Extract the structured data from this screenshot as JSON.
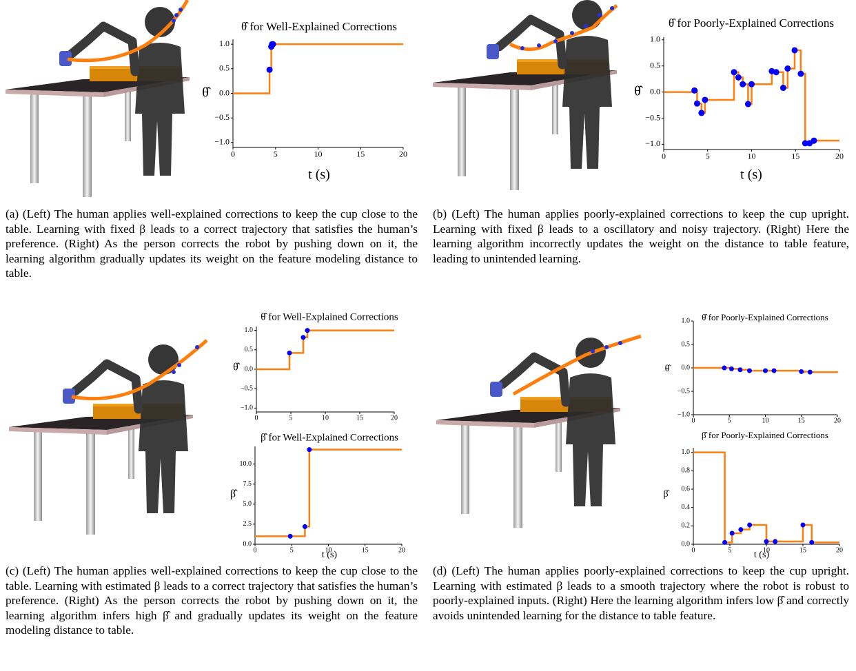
{
  "chart_data": [
    {
      "type": "step",
      "title": "θ̂ for Well-Explained Corrections",
      "x_label": "t (s)",
      "y_label": "θ̂",
      "x": [
        0,
        4.3,
        4.5,
        4.6,
        4.7,
        20
      ],
      "values": [
        0,
        0.48,
        0.95,
        1.0,
        1.0,
        1.0
      ],
      "marker_x": [
        4.3,
        4.5,
        4.6,
        4.7
      ],
      "marker_values": [
        0.48,
        0.95,
        1.0,
        1.0
      ],
      "color": "#ff7f0e",
      "marker_color": "#0000ff",
      "xlim": [
        0,
        20
      ],
      "ylim": [
        -1.1,
        1.1
      ],
      "xticks": [
        0,
        5,
        10,
        15,
        20
      ],
      "yticks": [
        {
          "value": -1.0,
          "label": "−1.0"
        },
        {
          "value": -0.5,
          "label": "−0.5"
        },
        {
          "value": 0,
          "label": "0.0"
        },
        0.5,
        {
          "value": 1.0,
          "label": "1.0"
        }
      ]
    },
    {
      "type": "step",
      "title": "θ̂ for Poorly-Explained Corrections",
      "x_label": "t (s)",
      "y_label": "θ̂",
      "x": [
        0,
        3.5,
        3.8,
        4.3,
        4.7,
        8.0,
        8.5,
        9.0,
        9.6,
        10.0,
        12.3,
        12.8,
        13.6,
        14.1,
        14.9,
        15.6,
        16.1,
        16.6,
        17.1,
        20
      ],
      "values": [
        0,
        0.03,
        -0.22,
        -0.4,
        -0.15,
        0.38,
        0.28,
        0.15,
        -0.23,
        0.15,
        0.4,
        0.38,
        0.08,
        0.45,
        0.8,
        0.35,
        -0.98,
        -0.98,
        -0.93,
        -0.93
      ],
      "marker_x": [
        3.5,
        3.8,
        4.3,
        4.7,
        8.0,
        8.5,
        9.0,
        9.6,
        10.0,
        12.3,
        12.8,
        13.6,
        14.1,
        14.9,
        15.6,
        16.1,
        16.6,
        17.1
      ],
      "marker_values": [
        0.03,
        -0.22,
        -0.4,
        -0.15,
        0.38,
        0.28,
        0.15,
        -0.23,
        0.15,
        0.4,
        0.38,
        0.08,
        0.45,
        0.8,
        0.35,
        -0.98,
        -0.98,
        -0.93
      ],
      "color": "#ff7f0e",
      "marker_color": "#0000ff",
      "xlim": [
        0,
        20
      ],
      "ylim": [
        -1.1,
        1.05
      ],
      "xticks": [
        0,
        5,
        10,
        15,
        20
      ],
      "yticks": [
        {
          "value": -1.0,
          "label": "−1.0"
        },
        {
          "value": -0.5,
          "label": "−0.5"
        },
        {
          "value": 0,
          "label": "0.0"
        },
        0.5,
        {
          "value": 1.0,
          "label": "1.0"
        }
      ]
    },
    {
      "type": "step",
      "title": "θ̂ for Well-Explained Corrections",
      "y_label": "θ̂",
      "x": [
        0,
        4.8,
        6.8,
        7.4,
        20
      ],
      "values": [
        0,
        0.42,
        0.82,
        1.0,
        1.0
      ],
      "marker_x": [
        4.8,
        6.8,
        7.4
      ],
      "marker_values": [
        0.42,
        0.82,
        1.0
      ],
      "color": "#ff7f0e",
      "marker_color": "#0000ff",
      "xlim": [
        0,
        20
      ],
      "ylim": [
        -1.1,
        1.1
      ],
      "xticks": [
        0,
        5,
        10,
        15,
        20
      ],
      "yticks": [
        {
          "value": -1.0,
          "label": "−1.0"
        },
        {
          "value": -0.5,
          "label": "−0.5"
        },
        {
          "value": 0,
          "label": "0.0"
        },
        0.5,
        {
          "value": 1.0,
          "label": "1.0"
        }
      ]
    },
    {
      "type": "step",
      "title": "β̂ for Well-Explained Corrections",
      "x_label": "t (s)",
      "y_label": "β̂",
      "x": [
        0,
        4.8,
        6.8,
        7.4,
        20
      ],
      "values": [
        1.0,
        1.0,
        2.2,
        11.8,
        11.8
      ],
      "marker_x": [
        4.8,
        6.8,
        7.4
      ],
      "marker_values": [
        1.0,
        2.2,
        11.8
      ],
      "color": "#ff7f0e",
      "marker_color": "#0000ff",
      "xlim": [
        0,
        20
      ],
      "ylim": [
        0,
        12.2
      ],
      "xticks": [
        0,
        5,
        10,
        15,
        20
      ],
      "yticks": [
        {
          "value": 0,
          "label": "0.0"
        },
        2.5,
        {
          "value": 5,
          "label": "5.0"
        },
        7.5,
        {
          "value": 10,
          "label": "10.0"
        }
      ]
    },
    {
      "type": "step",
      "title": "θ̂ for Poorly-Explained Corrections",
      "y_label": "θ̂",
      "x": [
        0,
        4.3,
        5.3,
        6.5,
        7.8,
        10.0,
        11.2,
        15.0,
        16.2,
        20
      ],
      "values": [
        0,
        0.0,
        -0.02,
        -0.04,
        -0.06,
        -0.06,
        -0.06,
        -0.08,
        -0.09,
        -0.1
      ],
      "marker_x": [
        4.3,
        5.3,
        6.5,
        7.8,
        10.0,
        11.2,
        15.0,
        16.2
      ],
      "marker_values": [
        0.0,
        -0.02,
        -0.04,
        -0.06,
        -0.06,
        -0.06,
        -0.08,
        -0.09
      ],
      "color": "#ff7f0e",
      "marker_color": "#0000ff",
      "xlim": [
        0,
        20
      ],
      "ylim": [
        -1.0,
        1.0
      ],
      "xticks": [
        0,
        5,
        10,
        15,
        20
      ],
      "yticks": [
        {
          "value": -1.0,
          "label": "−1.0"
        },
        {
          "value": -0.5,
          "label": "−0.5"
        },
        {
          "value": 0,
          "label": "0.0"
        },
        0.5,
        {
          "value": 1.0,
          "label": "1.0"
        }
      ]
    },
    {
      "type": "step",
      "title": "β̂ for Poorly-Explained Corrections",
      "x_label": "t (s)",
      "y_label": "β̂",
      "x": [
        0,
        4.3,
        5.3,
        6.5,
        7.7,
        10.0,
        11.2,
        15.0,
        16.2,
        20
      ],
      "values": [
        1.0,
        0.02,
        0.12,
        0.16,
        0.21,
        0.03,
        0.03,
        0.21,
        0.02,
        0.02
      ],
      "marker_x": [
        4.3,
        5.3,
        6.5,
        7.7,
        10.0,
        11.2,
        15.0,
        16.2
      ],
      "marker_values": [
        0.02,
        0.12,
        0.16,
        0.21,
        0.03,
        0.03,
        0.21,
        0.02
      ],
      "color": "#ff7f0e",
      "marker_color": "#0000ff",
      "xlim": [
        0,
        20
      ],
      "ylim": [
        0,
        1.05
      ],
      "xticks": [
        0,
        5,
        10,
        15,
        20
      ],
      "yticks": [
        {
          "value": 0,
          "label": "0.0"
        },
        0.2,
        0.4,
        0.6,
        0.8,
        {
          "value": 1.0,
          "label": "1.0"
        }
      ]
    }
  ],
  "captions": [
    "(a) (Left) The human applies well-explained corrections to keep the cup close to the table. Learning with fixed β leads to a correct trajectory that satisfies the human’s preference. (Right) As the person corrects the robot by pushing down on it, the learning algorithm gradually updates its weight on the feature modeling distance to table.",
    "(b) (Left) The human applies poorly-explained corrections to keep the cup upright. Learning with fixed β leads to a oscillatory and noisy trajectory. (Right) Here the learning algorithm incorrectly updates the weight on the distance to table feature, leading to unintended learning.",
    "(c) (Left) The human applies well-explained corrections to keep the cup close to the table. Learning with estimated β leads to a correct trajectory that satisfies the human’s preference. (Right) As the person corrects the robot by pushing down on it, the learning algorithm infers high β̂ and gradually updates its weight on the feature modeling distance to table.",
    "(d) (Left) The human applies poorly-explained corrections to keep the cup upright. Learning with estimated β leads to a smooth trajectory where the robot is robust to poorly-explained inputs. (Right) Here the learning algorithm infers low β̂ and correctly avoids unintended learning for the distance to table feature."
  ]
}
